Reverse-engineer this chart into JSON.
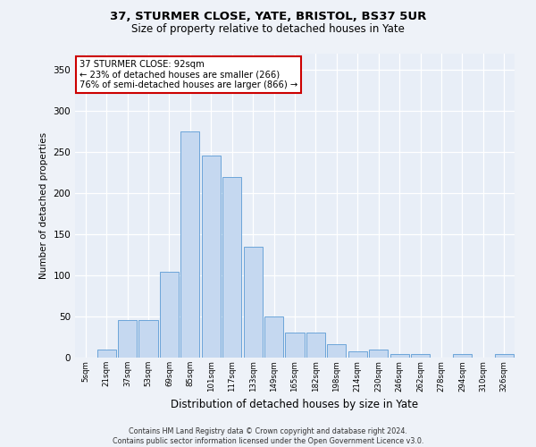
{
  "title1": "37, STURMER CLOSE, YATE, BRISTOL, BS37 5UR",
  "title2": "Size of property relative to detached houses in Yate",
  "xlabel": "Distribution of detached houses by size in Yate",
  "ylabel": "Number of detached properties",
  "categories": [
    "5sqm",
    "21sqm",
    "37sqm",
    "53sqm",
    "69sqm",
    "85sqm",
    "101sqm",
    "117sqm",
    "133sqm",
    "149sqm",
    "165sqm",
    "182sqm",
    "198sqm",
    "214sqm",
    "230sqm",
    "246sqm",
    "262sqm",
    "278sqm",
    "294sqm",
    "310sqm",
    "326sqm"
  ],
  "values": [
    0,
    10,
    46,
    46,
    104,
    275,
    246,
    220,
    135,
    50,
    30,
    30,
    16,
    8,
    10,
    4,
    4,
    0,
    4,
    0,
    4
  ],
  "bar_color": "#c5d8f0",
  "bar_edge_color": "#5b9bd5",
  "annotation_text": "37 STURMER CLOSE: 92sqm\n← 23% of detached houses are smaller (266)\n76% of semi-detached houses are larger (866) →",
  "annotation_box_color": "#ffffff",
  "annotation_box_edge": "#cc0000",
  "footer": "Contains HM Land Registry data © Crown copyright and database right 2024.\nContains public sector information licensed under the Open Government Licence v3.0.",
  "ylim": [
    0,
    370
  ],
  "background_color": "#e8eef7",
  "grid_color": "#ffffff",
  "fig_bg": "#eef2f8"
}
